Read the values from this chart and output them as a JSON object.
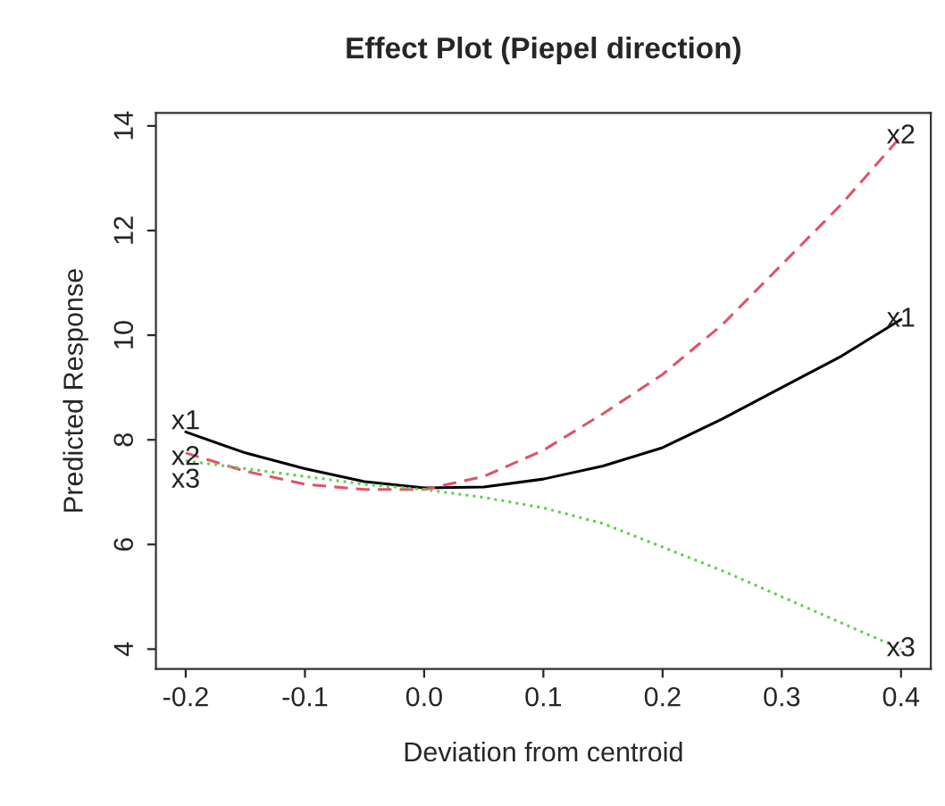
{
  "chart_data": {
    "type": "line",
    "title": "Effect Plot (Piepel direction)",
    "xlabel": "Deviation from centroid",
    "ylabel": "Predicted Response",
    "x": [
      -0.2,
      -0.15,
      -0.1,
      -0.05,
      0,
      0.05,
      0.1,
      0.15,
      0.2,
      0.25,
      0.3,
      0.35,
      0.4
    ],
    "series": [
      {
        "name": "x1",
        "color": "#000000",
        "line_style": "solid",
        "values": [
          8.15,
          7.75,
          7.45,
          7.2,
          7.08,
          7.1,
          7.25,
          7.5,
          7.85,
          8.4,
          9.0,
          9.6,
          10.3
        ]
      },
      {
        "name": "x2",
        "color": "#df536b",
        "line_style": "dashed",
        "values": [
          7.75,
          7.4,
          7.15,
          7.05,
          7.05,
          7.3,
          7.8,
          8.5,
          9.25,
          10.2,
          11.35,
          12.5,
          13.8
        ]
      },
      {
        "name": "x3",
        "color": "#61d04f",
        "line_style": "dotted",
        "values": [
          7.6,
          7.45,
          7.3,
          7.15,
          7.05,
          6.9,
          6.7,
          6.4,
          5.95,
          5.5,
          5.0,
          4.5,
          4.0
        ]
      }
    ],
    "xlim": [
      -0.225,
      0.425
    ],
    "ylim": [
      3.62,
      14.25
    ],
    "xticks": [
      {
        "value": -0.2,
        "label": "-0.2"
      },
      {
        "value": -0.1,
        "label": "-0.1"
      },
      {
        "value": 0,
        "label": "0.0"
      },
      {
        "value": 0.1,
        "label": "0.1"
      },
      {
        "value": 0.2,
        "label": "0.2"
      },
      {
        "value": 0.3,
        "label": "0.3"
      },
      {
        "value": 0.4,
        "label": "0.4"
      }
    ],
    "yticks": [
      4,
      6,
      8,
      10,
      12,
      14
    ],
    "grid": false,
    "legend": false
  }
}
